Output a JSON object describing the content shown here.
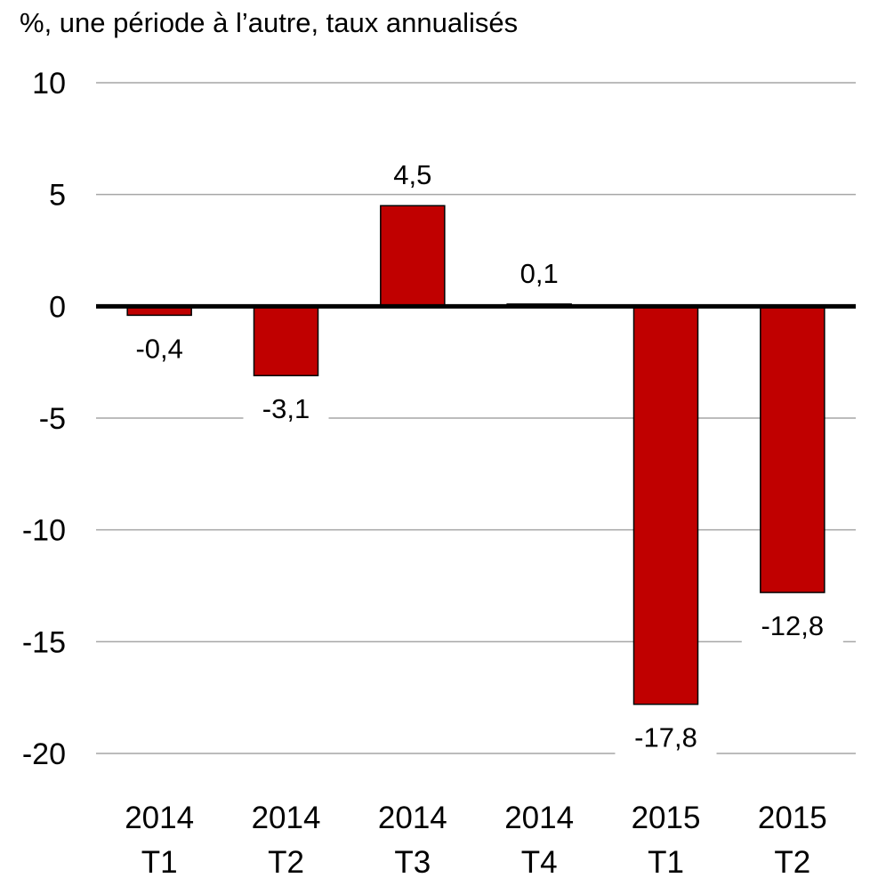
{
  "chart_data": {
    "type": "bar",
    "ylabel": "%, une période à l’autre, taux annualisés",
    "categories": [
      [
        "2014",
        "T1"
      ],
      [
        "2014",
        "T2"
      ],
      [
        "2014",
        "T3"
      ],
      [
        "2014",
        "T4"
      ],
      [
        "2015",
        "T1"
      ],
      [
        "2015",
        "T2"
      ]
    ],
    "values": [
      -0.4,
      -3.1,
      4.5,
      0.1,
      -17.8,
      -12.8
    ],
    "value_labels": [
      "-0,4",
      "-3,1",
      "4,5",
      "0,1",
      "-17,8",
      "-12,8"
    ],
    "ylim": [
      -20,
      10
    ],
    "yticks": [
      10,
      5,
      0,
      -5,
      -10,
      -15,
      -20
    ],
    "ytick_labels": [
      "10",
      "5",
      "0",
      "-5",
      "-10",
      "-15",
      "-20"
    ],
    "grid": true,
    "legend": false,
    "colors": {
      "bar": "#c00000",
      "grid": "#a6a6a6",
      "zero_line": "#000000"
    }
  }
}
